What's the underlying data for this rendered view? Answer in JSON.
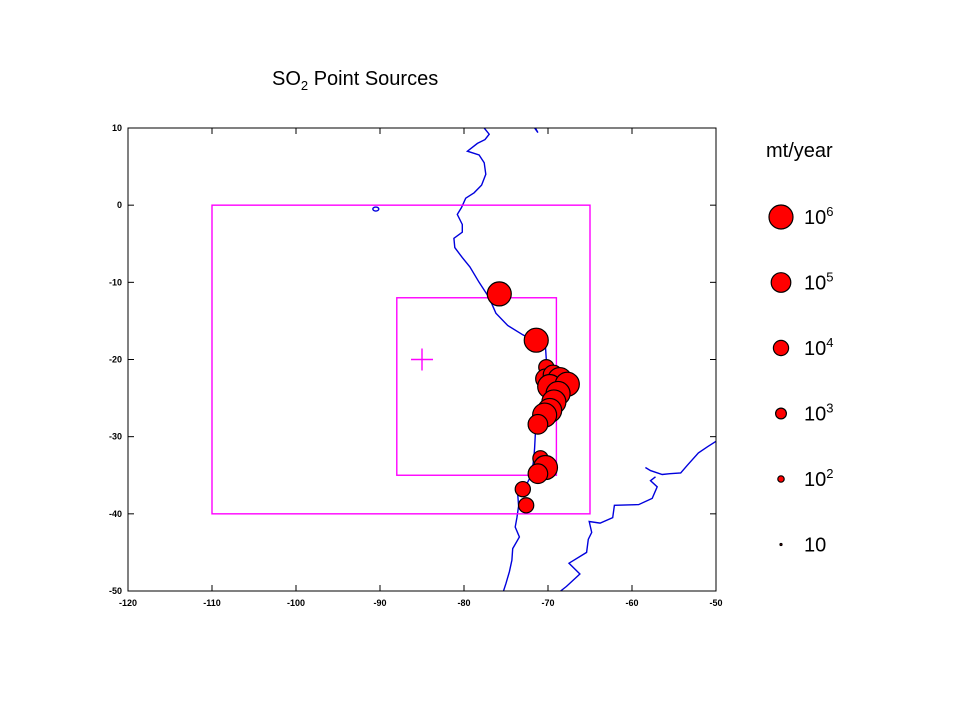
{
  "chart_data": {
    "type": "scatter",
    "title": "SO2 Point Sources",
    "title_parts": {
      "main": "SO",
      "sub": "2",
      "rest": " Point Sources"
    },
    "xlabel": "",
    "ylabel": "",
    "xlim": [
      -120,
      -50
    ],
    "ylim": [
      -50,
      10
    ],
    "xticks": [
      -120,
      -110,
      -100,
      -90,
      -80,
      -70,
      -60,
      -50
    ],
    "yticks": [
      10,
      0,
      -10,
      -20,
      -30,
      -40,
      -50
    ],
    "grid": false,
    "background": "#ffffff",
    "coastline_color": "#0000dd",
    "box_color": "#ff00ff",
    "marker_color": "#ff0000",
    "marker_edge": "#000000",
    "domains": [
      {
        "x0": -110,
        "x1": -65,
        "y0": -40,
        "y1": 0
      },
      {
        "x0": -88,
        "x1": -69,
        "y0": -35,
        "y1": -12
      }
    ],
    "center_marker": {
      "x": -85,
      "y": -20
    },
    "coastline": [
      [
        -77.6,
        10
      ],
      [
        -77,
        9.2
      ],
      [
        -77.5,
        8.5
      ],
      [
        -78.4,
        8
      ],
      [
        -79.6,
        7
      ],
      [
        -78.2,
        6.5
      ],
      [
        -77.6,
        5.5
      ],
      [
        -77.4,
        4
      ],
      [
        -77.9,
        2.6
      ],
      [
        -78.8,
        1.6
      ],
      [
        -79.8,
        0.9
      ],
      [
        -80.3,
        -0.3
      ],
      [
        -80.8,
        -1.2
      ],
      [
        -80.2,
        -2.5
      ],
      [
        -80.2,
        -3.5
      ],
      [
        -81.2,
        -4.3
      ],
      [
        -81.1,
        -5.5
      ],
      [
        -80.2,
        -6.8
      ],
      [
        -79.3,
        -8
      ],
      [
        -78.2,
        -10
      ],
      [
        -77,
        -12
      ],
      [
        -76.2,
        -14
      ],
      [
        -74.8,
        -15.6
      ],
      [
        -73,
        -16.8
      ],
      [
        -71.3,
        -17.8
      ],
      [
        -70.3,
        -18.4
      ],
      [
        -70.2,
        -20
      ],
      [
        -70.2,
        -22
      ],
      [
        -70.5,
        -23.5
      ],
      [
        -70.6,
        -25.5
      ],
      [
        -71,
        -27.5
      ],
      [
        -71.5,
        -29.5
      ],
      [
        -71.6,
        -31.5
      ],
      [
        -71.7,
        -33
      ],
      [
        -72,
        -35
      ],
      [
        -72.7,
        -36.5
      ],
      [
        -73.6,
        -37.6
      ],
      [
        -73.5,
        -39
      ],
      [
        -73.7,
        -40.5
      ],
      [
        -73.9,
        -41.7
      ],
      [
        -73.4,
        -43
      ],
      [
        -74.2,
        -44.5
      ],
      [
        -74.3,
        -46
      ],
      [
        -74.6,
        -47.5
      ],
      [
        -75,
        -49
      ],
      [
        -75.3,
        -50
      ]
    ],
    "coastline_east": [
      [
        -71.5,
        10
      ],
      [
        -71.2,
        9.4
      ],
      [
        -71.6,
        10
      ]
    ],
    "coastline_argentina": [
      [
        -57.2,
        -35.2
      ],
      [
        -57.8,
        -35.7
      ],
      [
        -57,
        -36.5
      ],
      [
        -57.6,
        -38
      ],
      [
        -59.2,
        -38.8
      ],
      [
        -62.1,
        -38.9
      ],
      [
        -62.3,
        -40.5
      ],
      [
        -63.8,
        -41.2
      ],
      [
        -65.1,
        -41
      ],
      [
        -64.8,
        -42.4
      ],
      [
        -65.2,
        -43.3
      ],
      [
        -65.4,
        -45
      ],
      [
        -67.5,
        -46.4
      ],
      [
        -66.2,
        -47.8
      ],
      [
        -67.8,
        -49.4
      ],
      [
        -68.5,
        -50
      ]
    ],
    "coastline_uruguay": [
      [
        -50,
        -30.6
      ],
      [
        -51,
        -31.3
      ],
      [
        -52.1,
        -32.1
      ],
      [
        -53.4,
        -33.7
      ],
      [
        -54.2,
        -34.7
      ],
      [
        -55.5,
        -34.8
      ],
      [
        -56.4,
        -34.9
      ],
      [
        -57.8,
        -34.4
      ],
      [
        -58.4,
        -34.0
      ]
    ],
    "islands": [
      {
        "x": -90.5,
        "y": -0.5,
        "r": 0.6
      }
    ],
    "series": [
      {
        "values": [
          {
            "x": -75.8,
            "y": -11.5,
            "mag": 6
          },
          {
            "x": -71.4,
            "y": -17.5,
            "mag": 6
          },
          {
            "x": -70.2,
            "y": -21.0,
            "mag": 4
          },
          {
            "x": -70.3,
            "y": -22.5,
            "mag": 5
          },
          {
            "x": -69.4,
            "y": -22.0,
            "mag": 5
          },
          {
            "x": -68.6,
            "y": -22.6,
            "mag": 6
          },
          {
            "x": -69.8,
            "y": -23.5,
            "mag": 6
          },
          {
            "x": -67.7,
            "y": -23.2,
            "mag": 6
          },
          {
            "x": -68.8,
            "y": -24.4,
            "mag": 6
          },
          {
            "x": -69.3,
            "y": -25.5,
            "mag": 6
          },
          {
            "x": -69.8,
            "y": -26.6,
            "mag": 6
          },
          {
            "x": -70.4,
            "y": -27.2,
            "mag": 6
          },
          {
            "x": -71.2,
            "y": -28.4,
            "mag": 5
          },
          {
            "x": -70.9,
            "y": -32.8,
            "mag": 4
          },
          {
            "x": -70.6,
            "y": -33.5,
            "mag": 4
          },
          {
            "x": -70.3,
            "y": -34.0,
            "mag": 6
          },
          {
            "x": -71.2,
            "y": -34.8,
            "mag": 5
          },
          {
            "x": -73.0,
            "y": -36.8,
            "mag": 4
          },
          {
            "x": -72.6,
            "y": -38.9,
            "mag": 4
          }
        ]
      }
    ],
    "legend": {
      "title": "mt/year",
      "placement": "right",
      "entries": [
        {
          "base": "10",
          "exp": "6",
          "mag": 6
        },
        {
          "base": "10",
          "exp": "5",
          "mag": 5
        },
        {
          "base": "10",
          "exp": "4",
          "mag": 4
        },
        {
          "base": "10",
          "exp": "3",
          "mag": 3
        },
        {
          "base": "10",
          "exp": "2",
          "mag": 2
        },
        {
          "base": "10",
          "exp": "",
          "mag": 1
        }
      ]
    }
  }
}
